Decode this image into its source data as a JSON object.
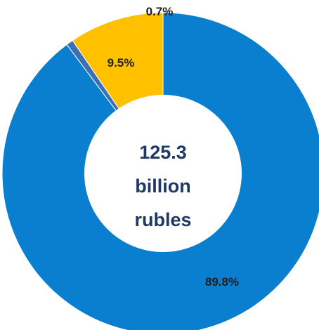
{
  "chart_data": {
    "type": "pie",
    "variant": "donut",
    "slices": [
      {
        "label": "89.8%",
        "value": 89.8,
        "color": "#0a7fcf"
      },
      {
        "label": "0.7%",
        "value": 0.7,
        "color": "#3b6fb6"
      },
      {
        "label": "9.5%",
        "value": 9.5,
        "color": "#ffc000"
      }
    ],
    "center_text": [
      "125.3",
      "billion",
      "rubles"
    ],
    "colors": {
      "label_text": "#1f1f1f",
      "center_text": "#1f3864",
      "hole": "#ffffff"
    }
  }
}
